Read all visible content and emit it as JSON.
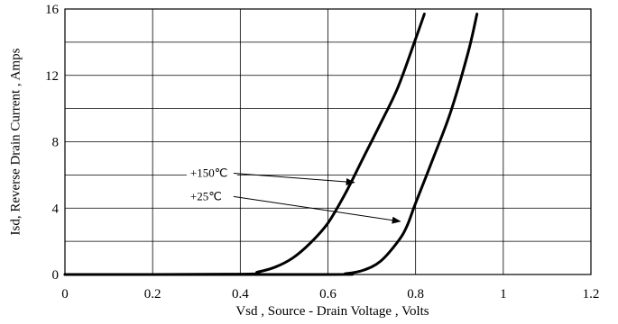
{
  "chart_data": {
    "type": "line",
    "xlabel": "Vsd , Source - Drain Voltage , Volts",
    "ylabel": "Isd, Reverse Drain Current , Amps",
    "xlim": [
      0,
      1.2
    ],
    "ylim": [
      0,
      16
    ],
    "x_ticks": [
      0,
      0.2,
      0.4,
      0.6,
      0.8,
      1,
      1.2
    ],
    "x_tick_labels": [
      "0",
      "0.2",
      "0.4",
      "0.6",
      "0.8",
      "1",
      "1.2"
    ],
    "y_ticks": [
      0,
      4,
      8,
      12,
      16
    ],
    "y_tick_labels": [
      "0",
      "4",
      "8",
      "12",
      "16"
    ],
    "grid": true,
    "grid_x_step": 0.2,
    "grid_y_step": 2,
    "series": [
      {
        "name": "+150℃",
        "x": [
          0.0,
          0.4,
          0.44,
          0.48,
          0.52,
          0.56,
          0.6,
          0.64,
          0.68,
          0.72,
          0.76,
          0.8,
          0.82
        ],
        "y": [
          0.0,
          0.02,
          0.15,
          0.45,
          1.0,
          1.9,
          3.1,
          4.9,
          7.0,
          9.1,
          11.3,
          14.2,
          15.7
        ]
      },
      {
        "name": "+25℃",
        "x": [
          0.0,
          0.6,
          0.64,
          0.68,
          0.72,
          0.76,
          0.78,
          0.8,
          0.84,
          0.88,
          0.92,
          0.94
        ],
        "y": [
          0.0,
          0.0,
          0.05,
          0.25,
          0.8,
          2.0,
          2.9,
          4.3,
          7.0,
          9.8,
          13.4,
          15.7
        ]
      }
    ],
    "annotations": [
      {
        "text": "+150℃",
        "arrow_from": [
          0.29,
          6.1
        ],
        "arrow_to": [
          0.66,
          5.55
        ]
      },
      {
        "text": "+25℃",
        "arrow_from": [
          0.29,
          4.7
        ],
        "arrow_to": [
          0.765,
          3.2
        ]
      }
    ],
    "colors": {
      "line": "#000000",
      "grid": "#000000",
      "background": "#ffffff"
    }
  }
}
